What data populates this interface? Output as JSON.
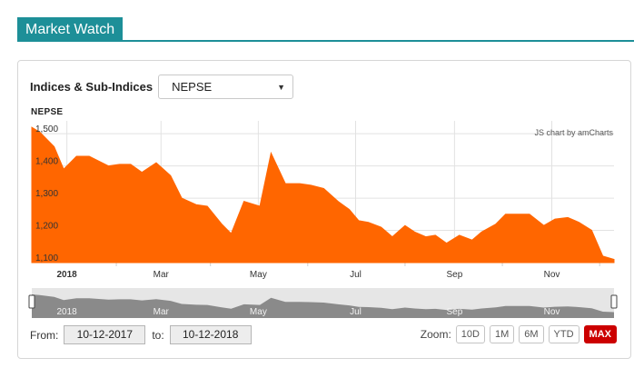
{
  "header": {
    "title": "Market Watch"
  },
  "index_selector": {
    "label": "Indices & Sub-Indices",
    "selected": "NEPSE"
  },
  "chart_title": "NEPSE",
  "credit": "JS chart by amCharts",
  "colors": {
    "accent": "#1d8f98",
    "series": "#ff6600",
    "zoom_active": "#cc0000",
    "navigator": "#888888"
  },
  "chart_data": {
    "type": "area",
    "title": "NEPSE",
    "y_ticks": [
      "1,500",
      "1,400",
      "1,300",
      "1,200",
      "1,100"
    ],
    "ylim": [
      1100,
      1540
    ],
    "x_labels": [
      "2018",
      "Mar",
      "May",
      "Jul",
      "Sep",
      "Nov"
    ],
    "xlim": [
      "2017-12-10",
      "2018-12-10"
    ],
    "grid": true,
    "x": [
      "2017-12-10",
      "2017-12-15",
      "2017-12-24",
      "2017-12-30",
      "2018-01-07",
      "2018-01-15",
      "2018-01-27",
      "2018-02-03",
      "2018-02-10",
      "2018-02-17",
      "2018-02-26",
      "2018-03-07",
      "2018-03-14",
      "2018-03-23",
      "2018-03-30",
      "2018-04-08",
      "2018-04-14",
      "2018-04-22",
      "2018-05-02",
      "2018-05-09",
      "2018-05-18",
      "2018-05-27",
      "2018-06-03",
      "2018-06-11",
      "2018-06-20",
      "2018-06-27",
      "2018-07-03",
      "2018-07-09",
      "2018-07-17",
      "2018-07-24",
      "2018-08-01",
      "2018-08-07",
      "2018-08-14",
      "2018-08-20",
      "2018-08-27",
      "2018-09-04",
      "2018-09-12",
      "2018-09-18",
      "2018-09-27",
      "2018-10-03",
      "2018-10-11",
      "2018-10-18",
      "2018-10-27",
      "2018-11-03",
      "2018-11-11",
      "2018-11-18",
      "2018-11-26",
      "2018-12-03",
      "2018-12-10"
    ],
    "series": [
      {
        "values": [
          1520,
          1505,
          1460,
          1390,
          1430,
          1430,
          1400,
          1405,
          1405,
          1380,
          1410,
          1370,
          1300,
          1280,
          1275,
          1220,
          1190,
          1290,
          1275,
          1440,
          1345,
          1345,
          1340,
          1330,
          1290,
          1265,
          1230,
          1225,
          1210,
          1180,
          1215,
          1195,
          1180,
          1185,
          1160,
          1185,
          1170,
          1195,
          1220,
          1250,
          1250,
          1250,
          1215,
          1235,
          1240,
          1225,
          1200,
          1120,
          1110
        ]
      }
    ]
  },
  "navigator": {
    "labels": [
      "2018",
      "Mar",
      "May",
      "Jul",
      "Sep",
      "Nov"
    ]
  },
  "period": {
    "from_label": "From:",
    "from_value": "10-12-2017",
    "to_label": "to:",
    "to_value": "10-12-2018"
  },
  "zoom": {
    "label": "Zoom:",
    "buttons": [
      {
        "label": "10D",
        "active": false
      },
      {
        "label": "1M",
        "active": false
      },
      {
        "label": "6M",
        "active": false
      },
      {
        "label": "YTD",
        "active": false
      },
      {
        "label": "MAX",
        "active": true
      }
    ]
  }
}
